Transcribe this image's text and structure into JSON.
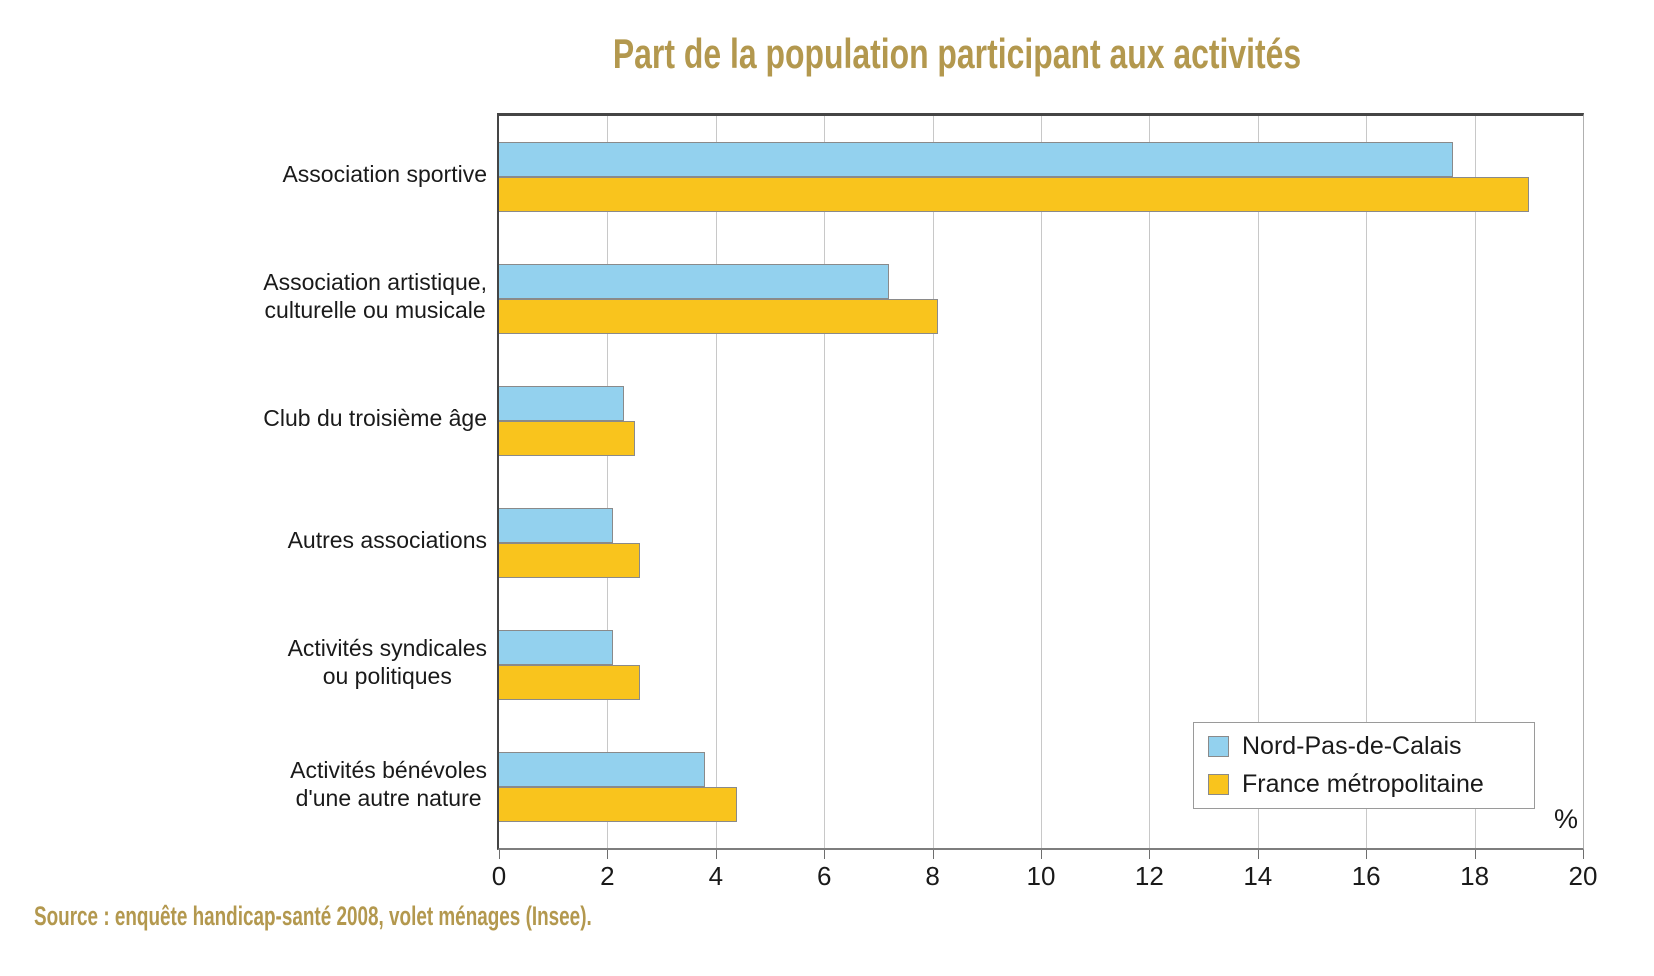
{
  "title": "Part de la population participant aux activités",
  "source_note": "Source : enquête handicap-santé 2008, volet ménages (Insee).",
  "colors": {
    "title_gold": "#b3984e",
    "series_nord_pas_de_calais": "#93d1ee",
    "series_france_metropolitaine": "#f9c41d",
    "bar_border": "#8a8a8a",
    "gridline": "#c8c8c8",
    "axis_dark": "#454545",
    "text": "#1a1a1a"
  },
  "legend": {
    "items": [
      {
        "label": "Nord-Pas-de-Calais",
        "color": "#93d1ee"
      },
      {
        "label": "France métropolitaine",
        "color": "#f9c41d"
      }
    ]
  },
  "chart_data": {
    "type": "bar",
    "orientation": "horizontal",
    "title": "Part de la population participant aux activités",
    "categories": [
      "Association sportive",
      "Association artistique,\nculturelle ou musicale",
      "Club du troisième âge",
      "Autres associations",
      "Activités syndicales\nou politiques",
      "Activités bénévoles\nd'une autre nature"
    ],
    "series": [
      {
        "name": "Nord-Pas-de-Calais",
        "color": "#93d1ee",
        "values": [
          17.6,
          7.2,
          2.3,
          2.1,
          2.1,
          3.8
        ]
      },
      {
        "name": "France métropolitaine",
        "color": "#f9c41d",
        "values": [
          19.0,
          8.1,
          2.5,
          2.6,
          2.6,
          4.4
        ]
      }
    ],
    "xlim": [
      0,
      20
    ],
    "xticks": [
      0,
      2,
      4,
      6,
      8,
      10,
      12,
      14,
      16,
      18,
      20
    ],
    "xlabel": "%",
    "grid": true,
    "legend_position": "inside-bottom-right"
  }
}
